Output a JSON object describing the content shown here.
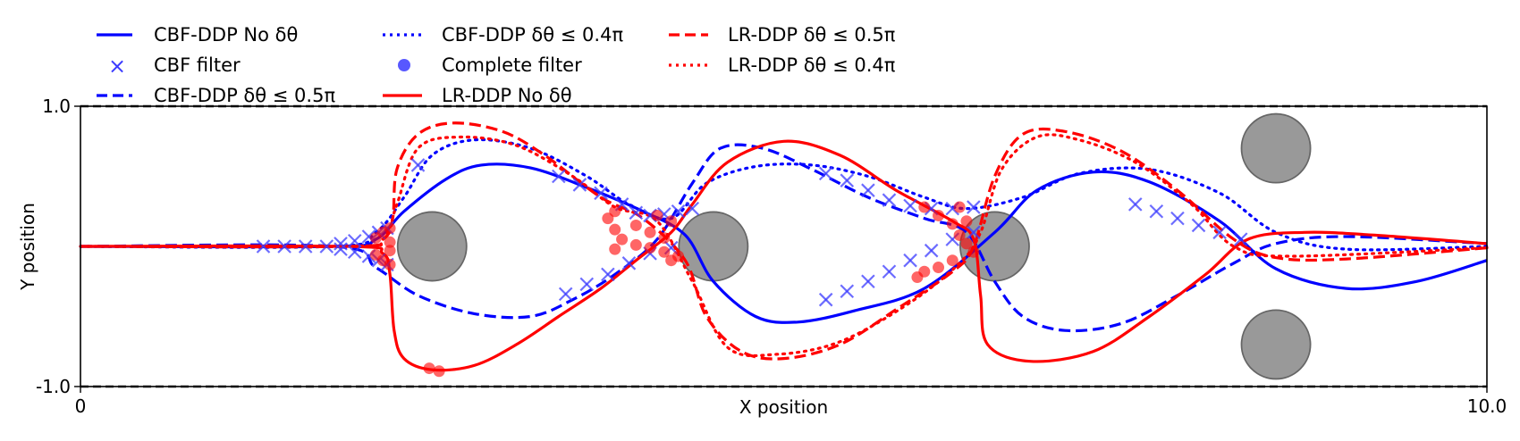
{
  "chart_data": {
    "type": "line",
    "title": "",
    "xlabel": "X position",
    "ylabel": "Y position",
    "xlim": [
      0,
      10
    ],
    "ylim": [
      -1,
      1
    ],
    "x_ticks": [
      {
        "value": 0,
        "label": "0"
      },
      {
        "value": 10,
        "label": "10.0"
      }
    ],
    "y_ticks": [
      {
        "value": 1,
        "label": "1.0"
      },
      {
        "value": -1,
        "label": "-1.0"
      }
    ],
    "boundaries": [
      1,
      -1
    ],
    "grid": false,
    "legend_placement": "above plot, upper left",
    "obstacles": [
      {
        "cx": 2.5,
        "cy": 0.0,
        "r": 0.25
      },
      {
        "cx": 4.5,
        "cy": 0.0,
        "r": 0.25
      },
      {
        "cx": 6.5,
        "cy": 0.0,
        "r": 0.25
      },
      {
        "cx": 8.5,
        "cy": 0.7,
        "r": 0.25
      },
      {
        "cx": 8.5,
        "cy": -0.7,
        "r": 0.25
      }
    ],
    "obstacle_color": "#999999",
    "series": [
      {
        "name": "CBF-DDP No δθ",
        "color": "#0000ff",
        "style": "solid",
        "points": [
          [
            0,
            0
          ],
          [
            1.8,
            0
          ],
          [
            2.1,
            0.05
          ],
          [
            2.3,
            0.25
          ],
          [
            2.6,
            0.48
          ],
          [
            2.85,
            0.58
          ],
          [
            3.2,
            0.56
          ],
          [
            3.6,
            0.42
          ],
          [
            4.0,
            0.25
          ],
          [
            4.3,
            0.08
          ],
          [
            4.5,
            -0.25
          ],
          [
            4.8,
            -0.5
          ],
          [
            5.1,
            -0.54
          ],
          [
            5.5,
            -0.46
          ],
          [
            6.0,
            -0.3
          ],
          [
            6.5,
            0.1
          ],
          [
            6.8,
            0.4
          ],
          [
            7.2,
            0.53
          ],
          [
            7.6,
            0.46
          ],
          [
            8.1,
            0.18
          ],
          [
            8.5,
            -0.16
          ],
          [
            9.0,
            -0.3
          ],
          [
            9.5,
            -0.25
          ],
          [
            10,
            -0.1
          ]
        ]
      },
      {
        "name": "CBF filter",
        "color": "#3b3bff",
        "style": "marker-x",
        "points": [
          [
            1.3,
            0
          ],
          [
            1.45,
            0
          ],
          [
            1.6,
            0
          ],
          [
            1.75,
            0
          ],
          [
            1.85,
            0.02
          ],
          [
            1.95,
            0.04
          ],
          [
            2.05,
            0.07
          ],
          [
            2.12,
            0.1
          ],
          [
            2.18,
            0.13
          ],
          [
            1.85,
            -0.02
          ],
          [
            1.95,
            -0.04
          ],
          [
            2.05,
            -0.07
          ],
          [
            2.12,
            -0.1
          ],
          [
            2.18,
            -0.13
          ],
          [
            2.4,
            0.58
          ],
          [
            3.4,
            0.5
          ],
          [
            3.55,
            0.44
          ],
          [
            3.7,
            0.38
          ],
          [
            3.85,
            0.3
          ],
          [
            3.95,
            0.24
          ],
          [
            4.05,
            0.22
          ],
          [
            4.15,
            0.23
          ],
          [
            4.25,
            0.25
          ],
          [
            4.35,
            0.27
          ],
          [
            3.45,
            -0.34
          ],
          [
            3.6,
            -0.27
          ],
          [
            3.75,
            -0.2
          ],
          [
            3.9,
            -0.12
          ],
          [
            4.05,
            -0.05
          ],
          [
            4.2,
            -0.01
          ],
          [
            5.3,
            0.52
          ],
          [
            5.45,
            0.47
          ],
          [
            5.6,
            0.4
          ],
          [
            5.75,
            0.33
          ],
          [
            5.9,
            0.29
          ],
          [
            6.05,
            0.27
          ],
          [
            6.2,
            0.27
          ],
          [
            6.35,
            0.28
          ],
          [
            5.3,
            -0.38
          ],
          [
            5.45,
            -0.32
          ],
          [
            5.6,
            -0.25
          ],
          [
            5.75,
            -0.18
          ],
          [
            5.9,
            -0.1
          ],
          [
            6.05,
            -0.03
          ],
          [
            6.2,
            0.05
          ],
          [
            6.35,
            0.1
          ],
          [
            7.5,
            0.3
          ],
          [
            7.65,
            0.25
          ],
          [
            7.8,
            0.2
          ],
          [
            7.95,
            0.15
          ],
          [
            8.1,
            0.1
          ],
          [
            8.25,
            0.05
          ]
        ]
      },
      {
        "name": "CBF-DDP δθ ≤ 0.5π",
        "color": "#0000ff",
        "style": "dashed",
        "points": [
          [
            0,
            0
          ],
          [
            1.8,
            0
          ],
          [
            2.1,
            -0.15
          ],
          [
            2.4,
            -0.35
          ],
          [
            2.8,
            -0.48
          ],
          [
            3.2,
            -0.5
          ],
          [
            3.5,
            -0.38
          ],
          [
            3.8,
            -0.2
          ],
          [
            4.1,
            0.05
          ],
          [
            4.35,
            0.45
          ],
          [
            4.55,
            0.7
          ],
          [
            4.85,
            0.7
          ],
          [
            5.2,
            0.55
          ],
          [
            5.6,
            0.35
          ],
          [
            6.0,
            0.2
          ],
          [
            6.3,
            0.1
          ],
          [
            6.5,
            -0.25
          ],
          [
            6.7,
            -0.5
          ],
          [
            7.0,
            -0.6
          ],
          [
            7.4,
            -0.55
          ],
          [
            7.8,
            -0.35
          ],
          [
            8.2,
            -0.12
          ],
          [
            8.5,
            0.02
          ],
          [
            9.0,
            0.07
          ],
          [
            10,
            0.02
          ]
        ]
      },
      {
        "name": "Complete filter",
        "color": "#3b3bff",
        "style": "marker-dot",
        "points": []
      },
      {
        "name": "CBF-DDP δθ ≤ 0.4π",
        "color": "#0000ff",
        "style": "dotted",
        "points": [
          [
            0,
            0
          ],
          [
            1.8,
            0
          ],
          [
            2.1,
            0.1
          ],
          [
            2.3,
            0.35
          ],
          [
            2.5,
            0.65
          ],
          [
            2.8,
            0.76
          ],
          [
            3.2,
            0.7
          ],
          [
            3.6,
            0.5
          ],
          [
            3.9,
            0.3
          ],
          [
            4.2,
            0.2
          ],
          [
            4.45,
            0.45
          ],
          [
            4.8,
            0.57
          ],
          [
            5.2,
            0.58
          ],
          [
            5.6,
            0.5
          ],
          [
            6.0,
            0.35
          ],
          [
            6.3,
            0.27
          ],
          [
            6.7,
            0.35
          ],
          [
            7.1,
            0.52
          ],
          [
            7.6,
            0.55
          ],
          [
            8.1,
            0.38
          ],
          [
            8.5,
            0.1
          ],
          [
            9.0,
            -0.02
          ],
          [
            10,
            0
          ]
        ]
      },
      {
        "name": "LR-DDP No δθ",
        "color": "#ff0000",
        "style": "solid",
        "points": [
          [
            0,
            0
          ],
          [
            1.9,
            0
          ],
          [
            2.15,
            -0.05
          ],
          [
            2.2,
            -0.2
          ],
          [
            2.23,
            -0.6
          ],
          [
            2.3,
            -0.8
          ],
          [
            2.5,
            -0.88
          ],
          [
            2.8,
            -0.85
          ],
          [
            3.1,
            -0.7
          ],
          [
            3.4,
            -0.5
          ],
          [
            3.7,
            -0.3
          ],
          [
            3.95,
            -0.1
          ],
          [
            4.2,
            0.1
          ],
          [
            4.35,
            0.3
          ],
          [
            4.6,
            0.6
          ],
          [
            5.0,
            0.75
          ],
          [
            5.4,
            0.65
          ],
          [
            5.8,
            0.4
          ],
          [
            6.2,
            0.18
          ],
          [
            6.35,
            0.05
          ],
          [
            6.4,
            -0.35
          ],
          [
            6.45,
            -0.7
          ],
          [
            6.75,
            -0.82
          ],
          [
            7.2,
            -0.75
          ],
          [
            7.6,
            -0.5
          ],
          [
            8.0,
            -0.2
          ],
          [
            8.3,
            0.05
          ],
          [
            8.7,
            0.1
          ],
          [
            9.2,
            0.08
          ],
          [
            10,
            0.02
          ]
        ]
      },
      {
        "name": "LR-DDP δθ ≤ 0.5π",
        "color": "#ff0000",
        "style": "dashed",
        "points": [
          [
            0,
            0
          ],
          [
            1.9,
            0
          ],
          [
            2.15,
            0.05
          ],
          [
            2.22,
            0.2
          ],
          [
            2.25,
            0.55
          ],
          [
            2.4,
            0.8
          ],
          [
            2.65,
            0.88
          ],
          [
            3.0,
            0.82
          ],
          [
            3.3,
            0.65
          ],
          [
            3.7,
            0.35
          ],
          [
            4.0,
            0.2
          ],
          [
            4.3,
            -0.1
          ],
          [
            4.45,
            -0.5
          ],
          [
            4.7,
            -0.75
          ],
          [
            5.0,
            -0.8
          ],
          [
            5.4,
            -0.7
          ],
          [
            5.8,
            -0.45
          ],
          [
            6.2,
            -0.18
          ],
          [
            6.35,
            0.0
          ],
          [
            6.5,
            0.5
          ],
          [
            6.7,
            0.8
          ],
          [
            7.0,
            0.82
          ],
          [
            7.4,
            0.68
          ],
          [
            7.8,
            0.4
          ],
          [
            8.2,
            0.05
          ],
          [
            8.5,
            -0.08
          ],
          [
            9.0,
            -0.09
          ],
          [
            10,
            -0.01
          ]
        ]
      },
      {
        "name": "LR-DDP δθ ≤ 0.4π",
        "color": "#ff0000",
        "style": "dotted",
        "points": [
          [
            0,
            0
          ],
          [
            1.9,
            0
          ],
          [
            2.15,
            0.05
          ],
          [
            2.25,
            0.3
          ],
          [
            2.4,
            0.7
          ],
          [
            2.7,
            0.78
          ],
          [
            3.1,
            0.72
          ],
          [
            3.5,
            0.5
          ],
          [
            3.8,
            0.28
          ],
          [
            4.1,
            0.18
          ],
          [
            4.35,
            -0.25
          ],
          [
            4.6,
            -0.72
          ],
          [
            4.95,
            -0.77
          ],
          [
            5.4,
            -0.68
          ],
          [
            5.9,
            -0.4
          ],
          [
            6.25,
            -0.12
          ],
          [
            6.4,
            0.1
          ],
          [
            6.55,
            0.55
          ],
          [
            6.8,
            0.78
          ],
          [
            7.1,
            0.76
          ],
          [
            7.5,
            0.6
          ],
          [
            7.9,
            0.3
          ],
          [
            8.2,
            0.0
          ],
          [
            8.6,
            -0.07
          ],
          [
            10,
            -0.01
          ]
        ]
      }
    ],
    "lr_filter_points": [
      [
        2.1,
        0.06
      ],
      [
        2.15,
        0.1
      ],
      [
        2.2,
        0.13
      ],
      [
        2.1,
        -0.06
      ],
      [
        2.15,
        -0.1
      ],
      [
        2.2,
        -0.13
      ],
      [
        2.2,
        0.03
      ],
      [
        2.2,
        -0.03
      ],
      [
        2.48,
        -0.87
      ],
      [
        2.55,
        -0.89
      ],
      [
        3.75,
        0.2
      ],
      [
        3.8,
        0.12
      ],
      [
        3.85,
        0.05
      ],
      [
        3.95,
        0.01
      ],
      [
        4.05,
        -0.01
      ],
      [
        4.15,
        -0.04
      ],
      [
        3.8,
        0.25
      ],
      [
        3.95,
        0.15
      ],
      [
        4.05,
        0.1
      ],
      [
        4.15,
        0.06
      ],
      [
        3.8,
        -0.02
      ],
      [
        4.2,
        -0.1
      ],
      [
        4.25,
        -0.07
      ],
      [
        4.1,
        0.22
      ],
      [
        4.2,
        0.18
      ],
      [
        6.0,
        0.28
      ],
      [
        6.1,
        0.22
      ],
      [
        6.2,
        0.16
      ],
      [
        6.25,
        0.08
      ],
      [
        6.3,
        0.02
      ],
      [
        6.35,
        -0.04
      ],
      [
        6.1,
        -0.15
      ],
      [
        6.2,
        -0.1
      ],
      [
        5.95,
        -0.22
      ],
      [
        6.0,
        -0.18
      ],
      [
        6.25,
        0.28
      ],
      [
        6.3,
        0.18
      ]
    ]
  },
  "colors": {
    "blue": "#0000ff",
    "blue_marker": "#3b3bff",
    "red": "#ff0000",
    "obstacle": "#999999"
  }
}
